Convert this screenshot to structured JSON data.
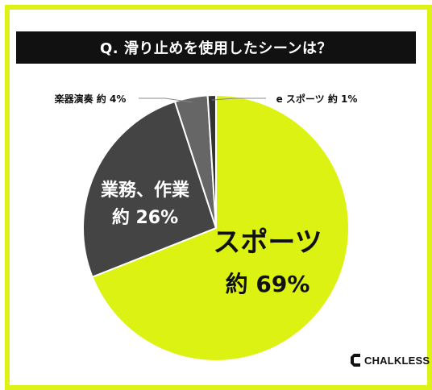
{
  "title": "Q. 滑り止めを使用したシーンは？",
  "logo": "CHALKLESS",
  "colors": {
    "frame": "#dff218",
    "title_bg": "#111111",
    "slice_main": "#dcf213",
    "slice_work": "#444444",
    "slice_music": "#666666",
    "slice_esports": "#333333",
    "divider": "#ffffff",
    "leader": "#888888"
  },
  "chart_data": {
    "type": "pie",
    "title": "Q. 滑り止めを使用したシーンは？",
    "start": "12 o'clock, clockwise",
    "slices": [
      {
        "label": "スポーツ",
        "prefix": "約",
        "value": 69,
        "display": "69%",
        "color": "#dcf213"
      },
      {
        "label": "業務、作業",
        "prefix": "約",
        "value": 26,
        "display": "26%",
        "color": "#444444"
      },
      {
        "label": "楽器演奏",
        "prefix": "約",
        "value": 4,
        "display": "4%",
        "color": "#666666"
      },
      {
        "label": "e スポーツ",
        "prefix": "約",
        "value": 1,
        "display": "1%",
        "color": "#333333"
      }
    ]
  }
}
